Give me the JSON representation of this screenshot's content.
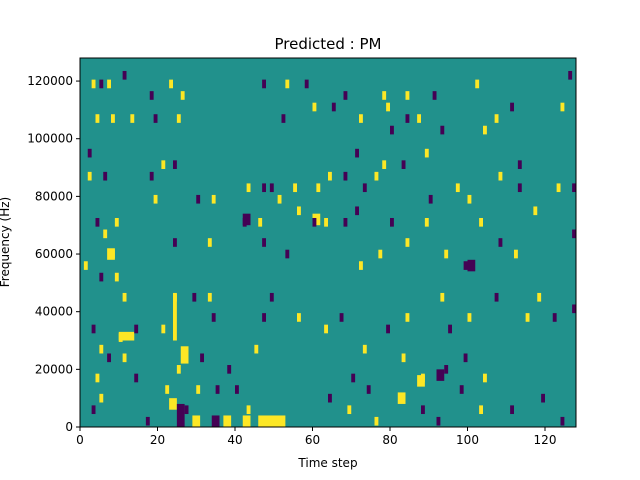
{
  "chart_data": {
    "type": "heatmap",
    "title": "Predicted : PM",
    "xlabel": "Time step",
    "ylabel": "Frequency (Hz)",
    "xlim": [
      0,
      128
    ],
    "ylim": [
      0,
      128000
    ],
    "n_time_steps": 128,
    "n_freq_bins": 128,
    "x_ticks": [
      0,
      20,
      40,
      60,
      80,
      100,
      120
    ],
    "y_ticks": [
      0,
      20000,
      40000,
      60000,
      80000,
      100000,
      120000
    ],
    "x_tick_labels": [
      "0",
      "20",
      "40",
      "60",
      "80",
      "100",
      "120"
    ],
    "y_tick_labels": [
      "0",
      "20000",
      "40000",
      "60000",
      "80000",
      "100000",
      "120000"
    ],
    "grid": false,
    "colors": {
      "background": "#21918c",
      "high": "#fde725",
      "low": "#440154"
    },
    "background_value": 0,
    "high_value": 1,
    "low_value": -1,
    "cells": [
      {
        "t": 3,
        "f": 119000,
        "v": 1
      },
      {
        "t": 5,
        "f": 119000,
        "v": -1
      },
      {
        "t": 7,
        "f": 119000,
        "v": 1
      },
      {
        "t": 11,
        "f": 122000,
        "v": -1
      },
      {
        "t": 18,
        "f": 115000,
        "v": -1
      },
      {
        "t": 23,
        "f": 119000,
        "v": 1
      },
      {
        "t": 26,
        "f": 115000,
        "v": 1
      },
      {
        "t": 47,
        "f": 119000,
        "v": -1
      },
      {
        "t": 53,
        "f": 119000,
        "v": 1
      },
      {
        "t": 58,
        "f": 119000,
        "v": -1
      },
      {
        "t": 68,
        "f": 115000,
        "v": -1
      },
      {
        "t": 78,
        "f": 115000,
        "v": 1
      },
      {
        "t": 84,
        "f": 115000,
        "v": 1
      },
      {
        "t": 91,
        "f": 115000,
        "v": -1
      },
      {
        "t": 102,
        "f": 119000,
        "v": 1
      },
      {
        "t": 126,
        "f": 122000,
        "v": -1
      },
      {
        "t": 4,
        "f": 107000,
        "v": 1
      },
      {
        "t": 8,
        "f": 107000,
        "v": 1
      },
      {
        "t": 13,
        "f": 107000,
        "v": 1
      },
      {
        "t": 19,
        "f": 107000,
        "v": -1
      },
      {
        "t": 25,
        "f": 107000,
        "v": 1
      },
      {
        "t": 52,
        "f": 107000,
        "v": -1
      },
      {
        "t": 60,
        "f": 111000,
        "v": 1
      },
      {
        "t": 65,
        "f": 111000,
        "v": -1
      },
      {
        "t": 72,
        "f": 107000,
        "v": 1
      },
      {
        "t": 79,
        "f": 111000,
        "v": 1
      },
      {
        "t": 80,
        "f": 103000,
        "v": -1
      },
      {
        "t": 84,
        "f": 107000,
        "v": -1
      },
      {
        "t": 87,
        "f": 107000,
        "v": 1
      },
      {
        "t": 93,
        "f": 103000,
        "v": -1
      },
      {
        "t": 104,
        "f": 103000,
        "v": 1
      },
      {
        "t": 107,
        "f": 107000,
        "v": 1
      },
      {
        "t": 111,
        "f": 111000,
        "v": -1
      },
      {
        "t": 124,
        "f": 111000,
        "v": 1
      },
      {
        "t": 2,
        "f": 95000,
        "v": -1
      },
      {
        "t": 21,
        "f": 91000,
        "v": 1
      },
      {
        "t": 24,
        "f": 91000,
        "v": -1
      },
      {
        "t": 71,
        "f": 95000,
        "v": -1
      },
      {
        "t": 78,
        "f": 91000,
        "v": 1
      },
      {
        "t": 83,
        "f": 91000,
        "v": -1
      },
      {
        "t": 89,
        "f": 95000,
        "v": 1
      },
      {
        "t": 113,
        "f": 91000,
        "v": -1
      },
      {
        "t": 2,
        "f": 87000,
        "v": 1
      },
      {
        "t": 6,
        "f": 87000,
        "v": -1
      },
      {
        "t": 18,
        "f": 87000,
        "v": -1
      },
      {
        "t": 19,
        "f": 79000,
        "v": 1
      },
      {
        "t": 30,
        "f": 79000,
        "v": -1
      },
      {
        "t": 34,
        "f": 79000,
        "v": 1
      },
      {
        "t": 43,
        "f": 83000,
        "v": 1
      },
      {
        "t": 47,
        "f": 83000,
        "v": -1
      },
      {
        "t": 49,
        "f": 83000,
        "v": -1
      },
      {
        "t": 51,
        "f": 79000,
        "v": 1
      },
      {
        "t": 55,
        "f": 83000,
        "v": 1
      },
      {
        "t": 61,
        "f": 83000,
        "v": 1
      },
      {
        "t": 64,
        "f": 87000,
        "v": 1
      },
      {
        "t": 68,
        "f": 87000,
        "v": -1
      },
      {
        "t": 73,
        "f": 83000,
        "v": -1
      },
      {
        "t": 76,
        "f": 87000,
        "v": 1
      },
      {
        "t": 90,
        "f": 79000,
        "v": -1
      },
      {
        "t": 97,
        "f": 83000,
        "v": 1
      },
      {
        "t": 100,
        "f": 79000,
        "v": 1
      },
      {
        "t": 108,
        "f": 87000,
        "v": 1
      },
      {
        "t": 113,
        "f": 83000,
        "v": -1
      },
      {
        "t": 123,
        "f": 83000,
        "v": 1
      },
      {
        "t": 127,
        "f": 83000,
        "v": -1
      },
      {
        "t": 4,
        "f": 71000,
        "v": -1
      },
      {
        "t": 9,
        "f": 71000,
        "v": 1
      },
      {
        "t": 6,
        "f": 67000,
        "v": 1
      },
      {
        "t": 42,
        "f": 71000,
        "v": -1
      },
      {
        "t": 46,
        "f": 71000,
        "v": 1
      },
      {
        "t": 56,
        "f": 75000,
        "v": 1
      },
      {
        "t": 60,
        "f": 71000,
        "v": -1
      },
      {
        "t": 63,
        "f": 71000,
        "v": 1
      },
      {
        "t": 68,
        "f": 71000,
        "v": -1
      },
      {
        "t": 71,
        "f": 75000,
        "v": -1
      },
      {
        "t": 80,
        "f": 71000,
        "v": -1
      },
      {
        "t": 89,
        "f": 71000,
        "v": 1
      },
      {
        "t": 103,
        "f": 71000,
        "v": 1
      },
      {
        "t": 117,
        "f": 75000,
        "v": 1
      },
      {
        "t": 127,
        "f": 67000,
        "v": -1
      },
      {
        "t": 8,
        "f": 60000,
        "v": 1
      },
      {
        "t": 24,
        "f": 64000,
        "v": -1
      },
      {
        "t": 33,
        "f": 64000,
        "v": 1
      },
      {
        "t": 47,
        "f": 64000,
        "v": -1
      },
      {
        "t": 53,
        "f": 60000,
        "v": -1
      },
      {
        "t": 72,
        "f": 56000,
        "v": 1
      },
      {
        "t": 77,
        "f": 60000,
        "v": 1
      },
      {
        "t": 84,
        "f": 64000,
        "v": 1
      },
      {
        "t": 94,
        "f": 60000,
        "v": 1
      },
      {
        "t": 99,
        "f": 56000,
        "v": -1
      },
      {
        "t": 108,
        "f": 64000,
        "v": -1
      },
      {
        "t": 112,
        "f": 60000,
        "v": 1
      },
      {
        "t": 1,
        "f": 56000,
        "v": 1
      },
      {
        "t": 5,
        "f": 52000,
        "v": -1
      },
      {
        "t": 9,
        "f": 52000,
        "v": 1
      },
      {
        "t": 11,
        "f": 45000,
        "v": 1
      },
      {
        "t": 24,
        "f": 45000,
        "v": 1
      },
      {
        "t": 29,
        "f": 45000,
        "v": -1
      },
      {
        "t": 33,
        "f": 45000,
        "v": 1
      },
      {
        "t": 49,
        "f": 45000,
        "v": -1
      },
      {
        "t": 56,
        "f": 38000,
        "v": 1
      },
      {
        "t": 67,
        "f": 38000,
        "v": -1
      },
      {
        "t": 93,
        "f": 45000,
        "v": 1
      },
      {
        "t": 107,
        "f": 45000,
        "v": -1
      },
      {
        "t": 118,
        "f": 45000,
        "v": 1
      },
      {
        "t": 127,
        "f": 41000,
        "v": -1
      },
      {
        "t": 3,
        "f": 34000,
        "v": -1
      },
      {
        "t": 5,
        "f": 27000,
        "v": 1
      },
      {
        "t": 10,
        "f": 31000,
        "v": 1
      },
      {
        "t": 14,
        "f": 34000,
        "v": -1
      },
      {
        "t": 21,
        "f": 34000,
        "v": 1
      },
      {
        "t": 34,
        "f": 38000,
        "v": -1
      },
      {
        "t": 47,
        "f": 38000,
        "v": -1
      },
      {
        "t": 63,
        "f": 34000,
        "v": 1
      },
      {
        "t": 73,
        "f": 27000,
        "v": 1
      },
      {
        "t": 79,
        "f": 34000,
        "v": -1
      },
      {
        "t": 84,
        "f": 38000,
        "v": 1
      },
      {
        "t": 95,
        "f": 34000,
        "v": -1
      },
      {
        "t": 100,
        "f": 38000,
        "v": 1
      },
      {
        "t": 115,
        "f": 38000,
        "v": 1
      },
      {
        "t": 122,
        "f": 38000,
        "v": -1
      },
      {
        "t": 4,
        "f": 17000,
        "v": 1
      },
      {
        "t": 7,
        "f": 24000,
        "v": -1
      },
      {
        "t": 11,
        "f": 24000,
        "v": 1
      },
      {
        "t": 14,
        "f": 17000,
        "v": -1
      },
      {
        "t": 25,
        "f": 20000,
        "v": 1
      },
      {
        "t": 31,
        "f": 24000,
        "v": -1
      },
      {
        "t": 38,
        "f": 20000,
        "v": -1
      },
      {
        "t": 45,
        "f": 27000,
        "v": 1
      },
      {
        "t": 70,
        "f": 17000,
        "v": -1
      },
      {
        "t": 83,
        "f": 24000,
        "v": 1
      },
      {
        "t": 88,
        "f": 17000,
        "v": 1
      },
      {
        "t": 94,
        "f": 20000,
        "v": -1
      },
      {
        "t": 99,
        "f": 24000,
        "v": -1
      },
      {
        "t": 104,
        "f": 17000,
        "v": 1
      },
      {
        "t": 5,
        "f": 10000,
        "v": 1
      },
      {
        "t": 3,
        "f": 6000,
        "v": -1
      },
      {
        "t": 17,
        "f": 2000,
        "v": -1
      },
      {
        "t": 22,
        "f": 13000,
        "v": 1
      },
      {
        "t": 27,
        "f": 6000,
        "v": -1
      },
      {
        "t": 30,
        "f": 13000,
        "v": 1
      },
      {
        "t": 35,
        "f": 13000,
        "v": -1
      },
      {
        "t": 40,
        "f": 13000,
        "v": -1
      },
      {
        "t": 43,
        "f": 6000,
        "v": 1
      },
      {
        "t": 64,
        "f": 10000,
        "v": -1
      },
      {
        "t": 69,
        "f": 6000,
        "v": 1
      },
      {
        "t": 74,
        "f": 13000,
        "v": -1
      },
      {
        "t": 76,
        "f": 2000,
        "v": 1
      },
      {
        "t": 88,
        "f": 6000,
        "v": -1
      },
      {
        "t": 92,
        "f": 2000,
        "v": -1
      },
      {
        "t": 98,
        "f": 13000,
        "v": -1
      },
      {
        "t": 103,
        "f": 6000,
        "v": 1
      },
      {
        "t": 111,
        "f": 6000,
        "v": -1
      },
      {
        "t": 119,
        "f": 10000,
        "v": -1
      },
      {
        "t": 124,
        "f": 2000,
        "v": -1
      }
    ],
    "blocks": [
      {
        "t0": 46,
        "t1": 53,
        "f0": 0,
        "f1": 4000,
        "v": 1
      },
      {
        "t0": 23,
        "t1": 25,
        "f0": 6000,
        "f1": 10000,
        "v": 1
      },
      {
        "t0": 25,
        "t1": 27,
        "f0": 0,
        "f1": 8000,
        "v": -1
      },
      {
        "t0": 29,
        "t1": 31,
        "f0": 0,
        "f1": 4000,
        "v": 1
      },
      {
        "t0": 34,
        "t1": 36,
        "f0": 0,
        "f1": 4000,
        "v": -1
      },
      {
        "t0": 37,
        "t1": 39,
        "f0": 0,
        "f1": 4000,
        "v": 1
      },
      {
        "t0": 42,
        "t1": 44,
        "f0": 0,
        "f1": 4000,
        "v": 1
      },
      {
        "t0": 82,
        "t1": 84,
        "f0": 8000,
        "f1": 12000,
        "v": 1
      },
      {
        "t0": 87,
        "t1": 89,
        "f0": 14000,
        "f1": 18000,
        "v": 1
      },
      {
        "t0": 92,
        "t1": 94,
        "f0": 16000,
        "f1": 20000,
        "v": -1
      },
      {
        "t0": 60,
        "t1": 62,
        "f0": 70000,
        "f1": 74000,
        "v": 1
      },
      {
        "t0": 42,
        "t1": 44,
        "f0": 70000,
        "f1": 74000,
        "v": -1
      },
      {
        "t0": 10,
        "t1": 14,
        "f0": 30000,
        "f1": 33000,
        "v": 1
      },
      {
        "t0": 26,
        "t1": 28,
        "f0": 22000,
        "f1": 28000,
        "v": 1
      },
      {
        "t0": 100,
        "t1": 102,
        "f0": 54000,
        "f1": 58000,
        "v": -1
      },
      {
        "t0": 7,
        "t1": 9,
        "f0": 58000,
        "f1": 62000,
        "v": 1
      },
      {
        "t0": 24,
        "t1": 25,
        "f0": 30000,
        "f1": 46000,
        "v": 1
      }
    ]
  }
}
